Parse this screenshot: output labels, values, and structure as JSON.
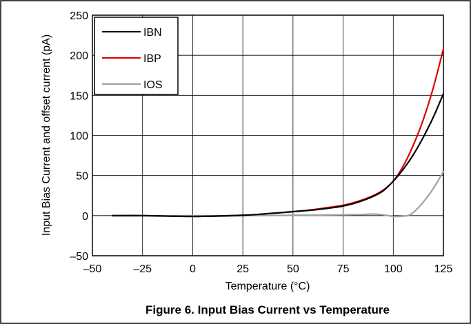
{
  "caption": "Figure 6. Input Bias Current vs Temperature",
  "chart_data": {
    "type": "line",
    "title": "",
    "xlabel": "Temperature (°C)",
    "ylabel": "Input Bias Current and offset current (pA)",
    "xlim": [
      -50,
      125
    ],
    "ylim": [
      -50,
      250
    ],
    "xticks": [
      -50,
      -25,
      0,
      25,
      50,
      75,
      100,
      125
    ],
    "xtick_labels": [
      "–50",
      "–25",
      "0",
      "25",
      "50",
      "75",
      "100",
      "125"
    ],
    "yticks": [
      -50,
      0,
      50,
      100,
      150,
      200,
      250
    ],
    "ytick_labels": [
      "–50",
      "0",
      "50",
      "100",
      "150",
      "200",
      "250"
    ],
    "grid": true,
    "legend_position": "top-left",
    "series": [
      {
        "name": "IBN",
        "color": "#000000",
        "x": [
          -40,
          -25,
          0,
          25,
          40,
          50,
          60,
          70,
          75,
          80,
          85,
          90,
          95,
          100,
          105,
          110,
          115,
          120,
          125
        ],
        "y": [
          0,
          0,
          -1,
          0.5,
          3,
          5,
          7,
          10,
          12,
          15,
          19,
          24,
          31,
          43,
          58,
          76,
          98,
          123,
          152
        ]
      },
      {
        "name": "IBP",
        "color": "#e00000",
        "x": [
          -40,
          -25,
          0,
          25,
          40,
          50,
          60,
          70,
          75,
          80,
          85,
          90,
          95,
          100,
          105,
          110,
          115,
          120,
          125
        ],
        "y": [
          0,
          0,
          -1,
          0.5,
          3,
          5,
          7.5,
          11,
          13,
          16,
          20,
          25,
          32,
          43,
          62,
          88,
          120,
          160,
          208
        ]
      },
      {
        "name": "IOS",
        "color": "#a0a0a0",
        "x": [
          -40,
          -25,
          0,
          25,
          50,
          75,
          85,
          90,
          95,
          100,
          103,
          107,
          110,
          115,
          120,
          125
        ],
        "y": [
          0,
          0,
          0,
          0,
          0.5,
          1,
          1.5,
          2,
          1,
          -1,
          -1,
          0,
          4,
          17,
          34,
          55
        ]
      }
    ]
  }
}
